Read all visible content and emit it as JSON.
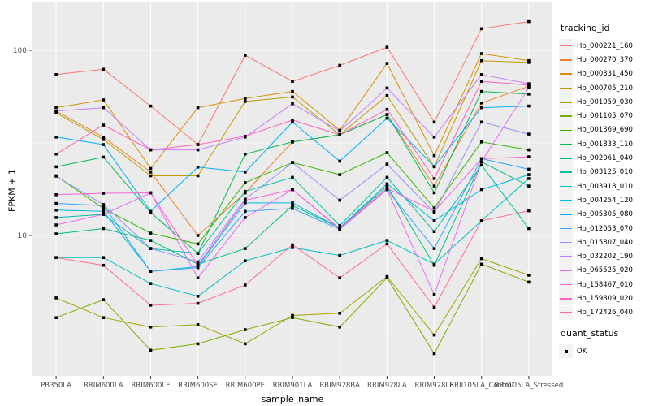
{
  "chart_data": {
    "type": "line",
    "title": "",
    "xlabel": "sample_name",
    "ylabel": "FPKM + 1",
    "y_scale": "log10",
    "ylim": [
      1.74,
      178
    ],
    "y_major_ticks": [
      10,
      100
    ],
    "y_minor_ticks": [
      3.162,
      31.62
    ],
    "grid": "on",
    "panel_background": "#EBEBEB",
    "grid_color": "#FFFFFF",
    "tick_text_color": "#4D4D4D",
    "marker": "black-square",
    "legend_position": "right",
    "legend_title": "tracking_id",
    "legend2_title": "quant_status",
    "legend2_items": [
      "OK"
    ],
    "categories": [
      "PB350LA",
      "RRIM600LA",
      "RRIM600LE",
      "RRIM600SE",
      "RRIM600PE",
      "RRIM901LA",
      "RRIM928BA",
      "RRIM928LA",
      "RRIM928LE",
      "RRII105LA_Control",
      "RRII105LA_Stressed"
    ],
    "series": [
      {
        "name": "Hb_000221_160",
        "color": "#F8766D",
        "values": [
          74,
          79,
          50,
          31,
          94,
          68,
          83,
          104,
          41,
          131,
          143
        ]
      },
      {
        "name": "Hb_000270_370",
        "color": "#EA8331",
        "values": [
          47,
          34,
          22,
          10,
          17,
          32,
          35,
          45,
          18.5,
          52,
          64
        ]
      },
      {
        "name": "Hb_000331_450",
        "color": "#D89000",
        "values": [
          49,
          54,
          23,
          49,
          55,
          60,
          37,
          85,
          27,
          96,
          88
        ]
      },
      {
        "name": "Hb_000705_210",
        "color": "#C09B00",
        "values": [
          46,
          33,
          21,
          21,
          53,
          56,
          35,
          57,
          23.5,
          88,
          86
        ]
      },
      {
        "name": "Hb_001059_030",
        "color": "#A3A500",
        "values": [
          4.6,
          3.6,
          3.2,
          3.3,
          2.6,
          3.7,
          3.8,
          6.0,
          2.9,
          7.5,
          6.1
        ]
      },
      {
        "name": "Hb_001105_070",
        "color": "#7CAE00",
        "values": [
          3.6,
          4.5,
          2.4,
          2.6,
          3.1,
          3.6,
          3.2,
          5.9,
          2.3,
          7.0,
          5.6
        ]
      },
      {
        "name": "Hb_001369_690",
        "color": "#39B600",
        "values": [
          21,
          14,
          10.3,
          9.0,
          19.3,
          24.8,
          21.3,
          28,
          14.1,
          32,
          29
        ]
      },
      {
        "name": "Hb_001833_110",
        "color": "#00BB4E",
        "values": [
          23.5,
          26.5,
          13.3,
          8.0,
          27.5,
          32,
          35,
          45,
          17,
          60,
          58
        ]
      },
      {
        "name": "Hb_002061_040",
        "color": "#00BF7D",
        "values": [
          10.2,
          10.9,
          9.4,
          7.0,
          8.5,
          14.5,
          11.0,
          18.5,
          6.9,
          25,
          18.5
        ]
      },
      {
        "name": "Hb_003125_010",
        "color": "#00C1A3",
        "values": [
          12.5,
          13,
          8.5,
          8.0,
          17.3,
          20.6,
          11.3,
          20.6,
          10.5,
          24,
          10.9
        ]
      },
      {
        "name": "Hb_003918_010",
        "color": "#00BFC4",
        "values": [
          7.6,
          7.6,
          5.5,
          4.7,
          7.3,
          8.6,
          7.8,
          9.4,
          7.0,
          12,
          20.3
        ]
      },
      {
        "name": "Hb_004254_120",
        "color": "#00BAE0",
        "values": [
          13.7,
          13.5,
          6.4,
          6.8,
          15,
          15,
          11,
          19,
          12,
          17.7,
          21.3
        ]
      },
      {
        "name": "Hb_005305_080",
        "color": "#00B0F6",
        "values": [
          34,
          31,
          13.5,
          23.4,
          22,
          41,
          25.2,
          43,
          23.6,
          49,
          50
        ]
      },
      {
        "name": "Hb_012053_070",
        "color": "#35A2FF",
        "values": [
          14.9,
          14.5,
          6.4,
          6.7,
          13.5,
          14,
          10.8,
          17.7,
          8.5,
          26,
          22.8
        ]
      },
      {
        "name": "Hb_015807_040",
        "color": "#9590FF",
        "values": [
          20.9,
          14.7,
          8.5,
          7.2,
          15.7,
          24.8,
          15.5,
          24.3,
          13.3,
          41,
          35.3
        ]
      },
      {
        "name": "Hb_032202_190",
        "color": "#C77CFF",
        "values": [
          47,
          49,
          29,
          29,
          34,
          51.5,
          36.6,
          62.6,
          34,
          74,
          66
        ]
      },
      {
        "name": "Hb_065525_020",
        "color": "#E76BF3",
        "values": [
          11.4,
          13,
          17,
          5.9,
          12.5,
          17.7,
          10.8,
          17.7,
          4.8,
          25,
          63
        ]
      },
      {
        "name": "Hb_158467_010",
        "color": "#FA62DB",
        "values": [
          16.6,
          16.9,
          17,
          6.9,
          15.5,
          17.7,
          10.9,
          18,
          13.5,
          26,
          26.6
        ]
      },
      {
        "name": "Hb_159809_020",
        "color": "#FF62BC",
        "values": [
          27.5,
          39.5,
          29,
          31,
          34.4,
          42,
          35,
          48,
          20.3,
          68,
          65
        ]
      },
      {
        "name": "Hb_172426_040",
        "color": "#FF6A98",
        "values": [
          7.6,
          6.9,
          4.2,
          4.3,
          5.4,
          8.9,
          5.9,
          9.0,
          4.1,
          12,
          13.6
        ]
      }
    ]
  },
  "axes": {
    "x_title": "sample_name",
    "y_title": "FPKM + 1",
    "y_tick_labels": [
      "100",
      "10"
    ]
  },
  "legend": {
    "tracking_title": "tracking_id",
    "quant_title": "quant_status",
    "quant_ok_label": "OK"
  }
}
